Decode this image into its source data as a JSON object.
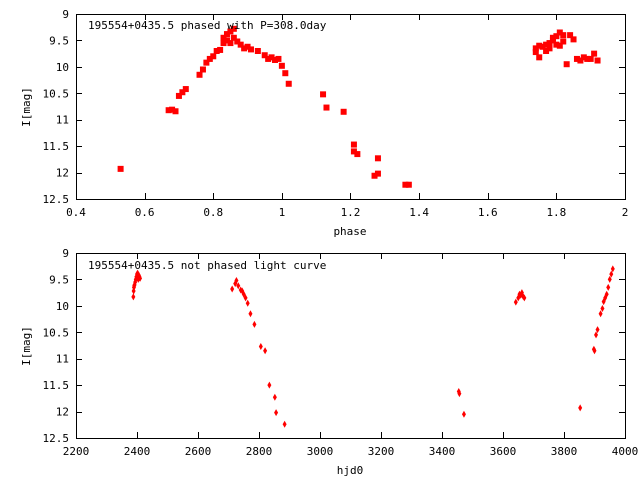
{
  "chart_data": [
    {
      "type": "scatter",
      "title": "195554+0435.5 phased with P=308.0day",
      "xlabel": "phase",
      "ylabel": "I[mag]",
      "xlim": [
        0.4,
        2.0
      ],
      "ylim": [
        12.5,
        9.0
      ],
      "y_inverted": true,
      "grid": false,
      "marker": "square",
      "color": "#ff0000",
      "x_ticks": [
        0.4,
        0.6,
        0.8,
        1.0,
        1.2,
        1.4,
        1.6,
        1.8,
        2.0
      ],
      "x_tick_labels": [
        "0.4",
        "0.6",
        "0.8",
        "1",
        "1.2",
        "1.4",
        "1.6",
        "1.8",
        "2"
      ],
      "y_ticks": [
        9,
        9.5,
        10,
        10.5,
        11,
        11.5,
        12,
        12.5
      ],
      "y_tick_labels": [
        "9",
        "9.5",
        "10",
        "10.5",
        "11",
        "11.5",
        "12",
        "12.5"
      ],
      "points": [
        [
          0.53,
          11.93
        ],
        [
          0.67,
          10.82
        ],
        [
          0.68,
          10.81
        ],
        [
          0.69,
          10.84
        ],
        [
          0.7,
          10.55
        ],
        [
          0.71,
          10.48
        ],
        [
          0.72,
          10.42
        ],
        [
          0.76,
          10.15
        ],
        [
          0.77,
          10.05
        ],
        [
          0.78,
          9.92
        ],
        [
          0.79,
          9.85
        ],
        [
          0.8,
          9.8
        ],
        [
          0.81,
          9.7
        ],
        [
          0.82,
          9.68
        ],
        [
          0.83,
          9.55
        ],
        [
          0.83,
          9.45
        ],
        [
          0.84,
          9.5
        ],
        [
          0.84,
          9.38
        ],
        [
          0.85,
          9.33
        ],
        [
          0.85,
          9.55
        ],
        [
          0.86,
          9.45
        ],
        [
          0.86,
          9.28
        ],
        [
          0.87,
          9.52
        ],
        [
          0.88,
          9.58
        ],
        [
          0.89,
          9.65
        ],
        [
          0.9,
          9.62
        ],
        [
          0.91,
          9.67
        ],
        [
          0.93,
          9.7
        ],
        [
          0.95,
          9.78
        ],
        [
          0.96,
          9.85
        ],
        [
          0.97,
          9.82
        ],
        [
          0.98,
          9.87
        ],
        [
          0.99,
          9.85
        ],
        [
          1.0,
          9.98
        ],
        [
          1.01,
          10.12
        ],
        [
          1.02,
          10.32
        ],
        [
          1.12,
          10.52
        ],
        [
          1.13,
          10.77
        ],
        [
          1.18,
          10.85
        ],
        [
          1.21,
          11.47
        ],
        [
          1.21,
          11.6
        ],
        [
          1.22,
          11.65
        ],
        [
          1.27,
          12.06
        ],
        [
          1.28,
          12.02
        ],
        [
          1.28,
          11.73
        ],
        [
          1.36,
          12.23
        ],
        [
          1.37,
          12.23
        ],
        [
          1.74,
          9.65
        ],
        [
          1.74,
          9.72
        ],
        [
          1.75,
          9.6
        ],
        [
          1.75,
          9.82
        ],
        [
          1.76,
          9.62
        ],
        [
          1.77,
          9.58
        ],
        [
          1.77,
          9.7
        ],
        [
          1.78,
          9.55
        ],
        [
          1.78,
          9.65
        ],
        [
          1.79,
          9.5
        ],
        [
          1.79,
          9.45
        ],
        [
          1.8,
          9.42
        ],
        [
          1.8,
          9.58
        ],
        [
          1.81,
          9.35
        ],
        [
          1.81,
          9.6
        ],
        [
          1.82,
          9.4
        ],
        [
          1.82,
          9.52
        ],
        [
          1.83,
          9.95
        ],
        [
          1.84,
          9.4
        ],
        [
          1.85,
          9.48
        ],
        [
          1.86,
          9.85
        ],
        [
          1.87,
          9.88
        ],
        [
          1.88,
          9.82
        ],
        [
          1.89,
          9.85
        ],
        [
          1.9,
          9.85
        ],
        [
          1.91,
          9.75
        ],
        [
          1.92,
          9.88
        ]
      ]
    },
    {
      "type": "scatter",
      "title": "195554+0435.5 not phased light curve",
      "xlabel": "hjd0",
      "ylabel": "I[mag]",
      "xlim": [
        2200,
        4000
      ],
      "ylim": [
        12.5,
        9.0
      ],
      "y_inverted": true,
      "grid": false,
      "marker": "diamond",
      "color": "#ff0000",
      "x_ticks": [
        2200,
        2400,
        2600,
        2800,
        3000,
        3200,
        3400,
        3600,
        3800,
        4000
      ],
      "x_tick_labels": [
        "2200",
        "2400",
        "2600",
        "2800",
        "3000",
        "3200",
        "3400",
        "3600",
        "3800",
        "4000"
      ],
      "y_ticks": [
        9,
        9.5,
        10,
        10.5,
        11,
        11.5,
        12,
        12.5
      ],
      "y_tick_labels": [
        "9",
        "9.5",
        "10",
        "10.5",
        "11",
        "11.5",
        "12",
        "12.5"
      ],
      "points": [
        [
          2388,
          9.83
        ],
        [
          2389,
          9.72
        ],
        [
          2390,
          9.65
        ],
        [
          2391,
          9.62
        ],
        [
          2392,
          9.6
        ],
        [
          2394,
          9.55
        ],
        [
          2396,
          9.5
        ],
        [
          2398,
          9.45
        ],
        [
          2400,
          9.4
        ],
        [
          2402,
          9.38
        ],
        [
          2404,
          9.5
        ],
        [
          2406,
          9.42
        ],
        [
          2408,
          9.45
        ],
        [
          2410,
          9.48
        ],
        [
          2712,
          9.68
        ],
        [
          2722,
          9.58
        ],
        [
          2726,
          9.52
        ],
        [
          2732,
          9.62
        ],
        [
          2740,
          9.7
        ],
        [
          2745,
          9.72
        ],
        [
          2750,
          9.78
        ],
        [
          2756,
          9.85
        ],
        [
          2763,
          9.95
        ],
        [
          2772,
          10.15
        ],
        [
          2785,
          10.35
        ],
        [
          2806,
          10.77
        ],
        [
          2820,
          10.85
        ],
        [
          2834,
          11.5
        ],
        [
          2852,
          11.73
        ],
        [
          2856,
          12.02
        ],
        [
          2884,
          12.24
        ],
        [
          3455,
          11.62
        ],
        [
          3457,
          11.66
        ],
        [
          3472,
          12.05
        ],
        [
          3642,
          9.93
        ],
        [
          3650,
          9.85
        ],
        [
          3654,
          9.78
        ],
        [
          3658,
          9.8
        ],
        [
          3662,
          9.75
        ],
        [
          3666,
          9.82
        ],
        [
          3670,
          9.85
        ],
        [
          3853,
          11.93
        ],
        [
          3898,
          10.82
        ],
        [
          3900,
          10.85
        ],
        [
          3905,
          10.55
        ],
        [
          3910,
          10.45
        ],
        [
          3920,
          10.15
        ],
        [
          3926,
          10.05
        ],
        [
          3930,
          9.92
        ],
        [
          3935,
          9.85
        ],
        [
          3940,
          9.78
        ],
        [
          3945,
          9.65
        ],
        [
          3950,
          9.5
        ],
        [
          3955,
          9.4
        ],
        [
          3960,
          9.3
        ]
      ]
    }
  ]
}
